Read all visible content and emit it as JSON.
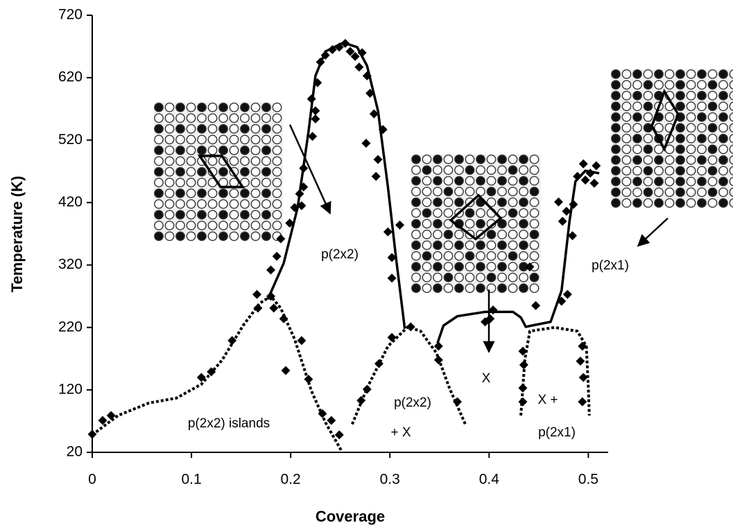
{
  "chart_data": {
    "type": "scatter",
    "x_label": "Coverage",
    "y_label": "Temperature (K)",
    "xlim": [
      0,
      0.52
    ],
    "ylim": [
      20,
      720
    ],
    "xticks": [
      0,
      0.1,
      0.2,
      0.3,
      0.4,
      0.5
    ],
    "yticks": [
      20,
      120,
      220,
      320,
      420,
      520,
      620,
      720
    ],
    "grid": false,
    "annotations": [
      "p(2x2)",
      "p(2x2) islands",
      "p(2x2)",
      "+ X",
      "X",
      "X +",
      "p(2x1)",
      "p(2x1)"
    ],
    "series": [
      {
        "style": "markers",
        "color": "#000000",
        "x": [
          0,
          0.0105,
          0.019,
          0.11,
          0.12,
          0.141,
          0.166,
          0.167,
          0.18,
          0.183,
          0.18,
          0.186,
          0.19,
          0.199,
          0.204,
          0.211,
          0.209,
          0.213,
          0.213,
          0.193,
          0.211,
          0.195,
          0.218,
          0.232,
          0.241,
          0.249,
          0.225,
          0.222,
          0.221,
          0.225,
          0.227,
          0.23,
          0.235,
          0.242,
          0.249,
          0.255,
          0.26,
          0.265,
          0.269,
          0.272,
          0.277,
          0.28,
          0.284,
          0.288,
          0.293,
          0.276,
          0.286,
          0.298,
          0.302,
          0.302,
          0.31,
          0.321,
          0.302,
          0.289,
          0.277,
          0.271,
          0.349,
          0.349,
          0.368,
          0.396,
          0.401,
          0.404,
          0.434,
          0.435,
          0.434,
          0.434,
          0.447,
          0.441,
          0.47,
          0.473,
          0.479,
          0.484,
          0.474,
          0.478,
          0.485,
          0.489,
          0.495,
          0.497,
          0.502,
          0.506,
          0.508,
          0.494,
          0.495,
          0.494,
          0.492
        ],
        "values": [
          49,
          71,
          79,
          140,
          149,
          199,
          273,
          251,
          270,
          251,
          312,
          334,
          362,
          387,
          412,
          415,
          434,
          445,
          475,
          234,
          199,
          151,
          137,
          82,
          71,
          48,
          554,
          526,
          586,
          567,
          612,
          645,
          656,
          665,
          669,
          675,
          662,
          654,
          637,
          660,
          623,
          595,
          562,
          489,
          537,
          515,
          462,
          373,
          332,
          299,
          384,
          221,
          204,
          162,
          121,
          103,
          190,
          168,
          101,
          229,
          234,
          248,
          182,
          160,
          123,
          101,
          255,
          317,
          421,
          262,
          273,
          367,
          390,
          406,
          417,
          462,
          482,
          456,
          467,
          451,
          479,
          190,
          140,
          101,
          166
        ]
      },
      {
        "style": "solid",
        "color": "#000000",
        "x": [
          0.177,
          0.193,
          0.207,
          0.218,
          0.225,
          0.235,
          0.253,
          0.267,
          0.277,
          0.288,
          0.298,
          0.306,
          0.315
        ],
        "values": [
          265,
          323,
          412,
          534,
          623,
          662,
          676,
          669,
          639,
          567,
          445,
          334,
          218
        ]
      },
      {
        "style": "solid",
        "color": "#000000",
        "x": [
          0.348,
          0.354,
          0.368,
          0.396,
          0.424,
          0.432,
          0.437,
          0.443,
          0.462,
          0.473,
          0.481,
          0.487,
          0.497,
          0.511
        ],
        "values": [
          195,
          223,
          238,
          245,
          245,
          236,
          221,
          223,
          229,
          279,
          390,
          454,
          471,
          467
        ]
      },
      {
        "style": "dotted",
        "color": "#000000",
        "x": [
          0,
          0.026,
          0.057,
          0.085,
          0.11,
          0.131,
          0.152,
          0.169,
          0.18,
          0.19,
          0.204,
          0.221,
          0.235,
          0.251
        ],
        "values": [
          48,
          79,
          99,
          107,
          129,
          168,
          223,
          259,
          270,
          251,
          201,
          118,
          68,
          23
        ]
      },
      {
        "style": "dotted",
        "color": "#000000",
        "x": [
          0.262,
          0.277,
          0.298,
          0.318,
          0.331,
          0.347,
          0.36,
          0.376
        ],
        "values": [
          65,
          123,
          190,
          221,
          214,
          179,
          123,
          65
        ]
      },
      {
        "style": "dotted",
        "color": "#000000",
        "x": [
          0.432,
          0.436,
          0.441,
          0.466,
          0.489,
          0.498,
          0.5,
          0.501
        ],
        "values": [
          79,
          168,
          214,
          220,
          214,
          190,
          123,
          79
        ]
      }
    ]
  }
}
